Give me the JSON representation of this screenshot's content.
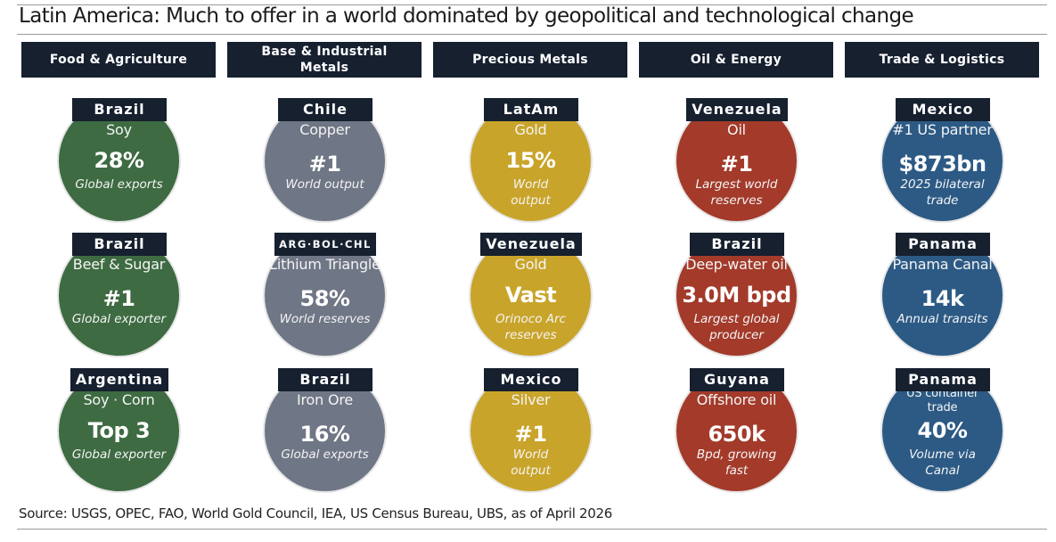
{
  "title": "Latin America: Much to offer in a world dominated by geopolitical and technological change",
  "source": "Source: USGS, OPEC, FAO, World Gold Council, IEA, US Census Bureau, UBS, as of April 2026",
  "colors": {
    "header_bg": "#16202f",
    "food_agriculture": "#3e6b42",
    "base_industrial_metals": "#6f7685",
    "precious_metals": "#c9a42a",
    "oil_energy": "#a33a2a",
    "trade_logistics": "#2c5a85"
  },
  "columns": [
    {
      "header": "Food & Agriculture",
      "items": [
        {
          "label": "Brazil",
          "category": "Soy",
          "value": "28%",
          "sub": "Global exports"
        },
        {
          "label": "Brazil",
          "category": "Beef & Sugar",
          "value": "#1",
          "sub": "Global exporter"
        },
        {
          "label": "Argentina",
          "category": "Soy · Corn",
          "value": "Top 3",
          "sub": "Global exporter"
        }
      ]
    },
    {
      "header": "Base & Industrial\nMetals",
      "items": [
        {
          "label": "Chile",
          "category": "Copper",
          "value": "#1",
          "sub": "World output"
        },
        {
          "label": "ARG·BOL·CHL",
          "category": "Lithium Triangle",
          "value": "58%",
          "sub": "World reserves"
        },
        {
          "label": "Brazil",
          "category": "Iron Ore",
          "value": "16%",
          "sub": "Global exports"
        }
      ]
    },
    {
      "header": "Precious Metals",
      "items": [
        {
          "label": "LatAm",
          "category": "Gold",
          "value": "15%",
          "sub": "World output"
        },
        {
          "label": "Venezuela",
          "category": "Gold",
          "value": "Vast",
          "sub": "Orinoco Arc reserves"
        },
        {
          "label": "Mexico",
          "category": "Silver",
          "value": "#1",
          "sub": "World output"
        }
      ]
    },
    {
      "header": "Oil & Energy",
      "items": [
        {
          "label": "Venezuela",
          "category": "Oil",
          "value": "#1",
          "sub": "Largest world reserves"
        },
        {
          "label": "Brazil",
          "category": "Deep-water oil",
          "value": "3.0M bpd",
          "sub": "Largest global producer"
        },
        {
          "label": "Guyana",
          "category": "Offshore oil",
          "value": "650k",
          "sub": "Bpd, growing fast"
        }
      ]
    },
    {
      "header": "Trade & Logistics",
      "items": [
        {
          "label": "Mexico",
          "category": "#1 US partner",
          "value": "$873bn",
          "sub": "2025 bilateral trade"
        },
        {
          "label": "Panama",
          "category": "Panama Canal",
          "value": "14k",
          "sub": "Annual transits"
        },
        {
          "label": "Panama",
          "category": "US container trade",
          "value": "40%",
          "sub": "Volume via Canal"
        }
      ]
    }
  ]
}
